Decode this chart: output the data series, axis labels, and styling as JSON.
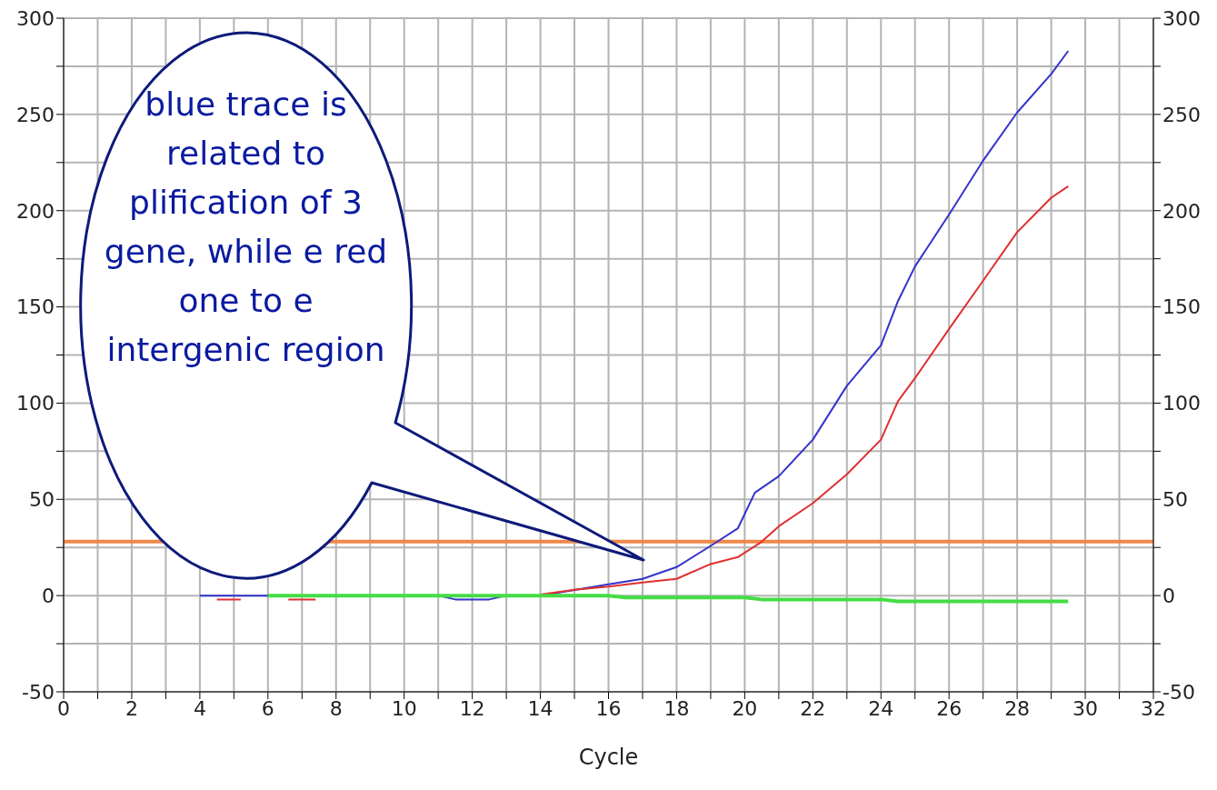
{
  "chart_data": {
    "type": "line",
    "xlabel": "Cycle",
    "xlim": [
      0,
      32
    ],
    "xticks": [
      0,
      {
        "value": 1,
        "label": null
      },
      2,
      {
        "value": 3,
        "label": null
      },
      4,
      {
        "value": 5,
        "label": null
      },
      6,
      {
        "value": 7,
        "label": null
      },
      8,
      {
        "value": 9,
        "label": null
      },
      10,
      {
        "value": 11,
        "label": null
      },
      12,
      {
        "value": 13,
        "label": null
      },
      14,
      {
        "value": 15,
        "label": null
      },
      16,
      {
        "value": 17,
        "label": null
      },
      18,
      {
        "value": 19,
        "label": null
      },
      20,
      {
        "value": 21,
        "label": null
      },
      22,
      {
        "value": 23,
        "label": null
      },
      24,
      {
        "value": 25,
        "label": null
      },
      26,
      {
        "value": 27,
        "label": null
      },
      28,
      {
        "value": 29,
        "label": null
      },
      30,
      {
        "value": 31,
        "label": null
      },
      32
    ],
    "ylim": [
      -50,
      300
    ],
    "yticks": [
      -50,
      {
        "value": -25,
        "label": null
      },
      0,
      {
        "value": 25,
        "label": null
      },
      50,
      {
        "value": 75,
        "label": null
      },
      100,
      {
        "value": 125,
        "label": null
      },
      150,
      {
        "value": 175,
        "label": null
      },
      200,
      {
        "value": 225,
        "label": null
      },
      250,
      {
        "value": 275,
        "label": null
      },
      300
    ],
    "y2lim": [
      -50,
      300
    ],
    "y2ticks": [
      -50,
      {
        "value": -25,
        "label": null
      },
      0,
      {
        "value": 25,
        "label": null
      },
      50,
      {
        "value": 75,
        "label": null
      },
      100,
      {
        "value": 125,
        "label": null
      },
      150,
      {
        "value": 175,
        "label": null
      },
      200,
      {
        "value": 225,
        "label": null
      },
      250,
      {
        "value": 275,
        "label": null
      },
      300
    ],
    "grid": true,
    "legend": false,
    "marker": "none",
    "line_style": "solid",
    "series": [
      {
        "color": "#3333cc",
        "x": [
          4,
          5,
          6,
          7,
          8,
          9,
          10,
          11,
          11.5,
          12.5,
          13,
          14,
          16,
          17,
          18,
          19,
          19.8,
          20.3,
          21,
          22,
          23,
          24,
          24.5,
          25,
          26,
          27,
          28,
          29,
          29.5
        ],
        "values": [
          0,
          0,
          0,
          0,
          0,
          0,
          0,
          0,
          -2,
          -2,
          0,
          0,
          5.9,
          8.7,
          14.8,
          25.8,
          35,
          53.5,
          62,
          81,
          109,
          130,
          153,
          171,
          198,
          226,
          251,
          271,
          283
        ]
      },
      {
        "color": "#e03030",
        "x": [
          4.5,
          5.2,
          5.5,
          6.6,
          7.4,
          7.8,
          14,
          15,
          16,
          17,
          18,
          19,
          19.8,
          20.5,
          21,
          22,
          23,
          24,
          24.5,
          25,
          26,
          27,
          28,
          29,
          29.5
        ],
        "values": [
          -2,
          -2,
          null,
          -2,
          -2,
          null,
          0.5,
          3,
          4.7,
          6.8,
          8.7,
          16.4,
          20,
          28,
          36,
          48,
          63,
          81,
          101,
          113,
          138.5,
          163.6,
          188.8,
          206.7,
          212.7
        ]
      },
      {
        "color": "#44dd44",
        "x": [
          6,
          8,
          10,
          12,
          14,
          16,
          16.5,
          20,
          20.5,
          24,
          24.5,
          29.5
        ],
        "values": [
          0,
          0,
          0,
          0,
          0,
          0,
          -1,
          -1,
          -2,
          -2,
          -3,
          -3
        ]
      }
    ],
    "ref_lines": [
      {
        "axis": "y",
        "value": 28,
        "color": "#f0884a"
      }
    ],
    "annotations": [
      "blue trace is related to plification of 3 gene, while e red one to e intergenic region"
    ]
  }
}
